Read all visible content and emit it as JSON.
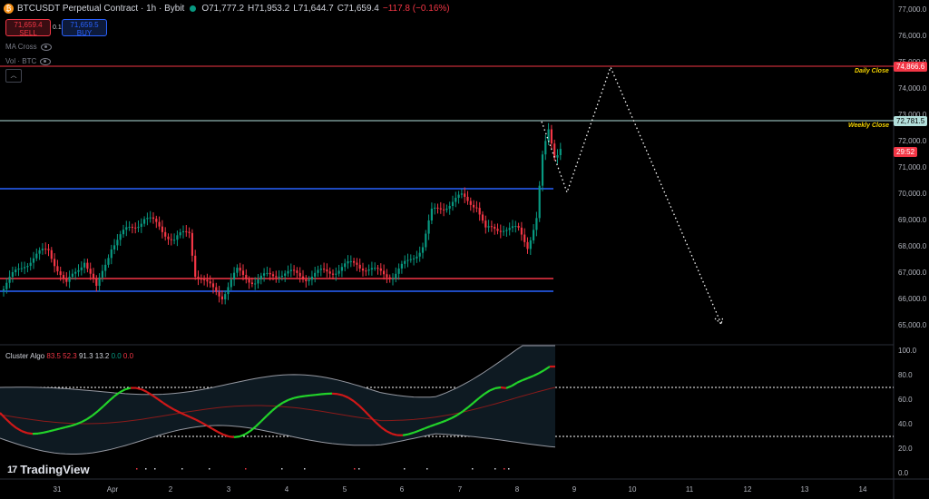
{
  "header": {
    "symbol_icon": "bitcoin-icon",
    "title": "BTCUSDT Perpetual Contract · 1h · Bybit",
    "ohlc_o": "O71,777.2",
    "ohlc_h": "H71,953.2",
    "ohlc_l": "L71,644.7",
    "ohlc_c": "C71,659.4",
    "ohlc_change": "−117.8 (−0.16%)"
  },
  "trade": {
    "sell_price": "71,659.4",
    "sell_label": "SELL",
    "spread": "0.1",
    "buy_price": "71,659.5",
    "buy_label": "BUY"
  },
  "indicators": [
    {
      "label": "MA Cross",
      "icon": "eye-icon"
    },
    {
      "label": "Vol · BTC",
      "icon": "eye-icon"
    }
  ],
  "price_axis": [
    "77,000.0",
    "76,000.0",
    "75,000.0",
    "74,000.0",
    "73,000.0",
    "72,000.0",
    "71,000.0",
    "70,000.0",
    "69,000.0",
    "68,000.0",
    "67,000.0",
    "66,000.0",
    "65,000.0"
  ],
  "price_tags": {
    "daily": "74,866.6",
    "weekly": "72,781.5",
    "countdown": "29:52"
  },
  "level_labels": {
    "daily": "Daily Close",
    "weekly": "Weekly Close"
  },
  "oscillator": {
    "name": "Cluster Algo",
    "values": [
      {
        "text": "83.5",
        "color": "#f23645"
      },
      {
        "text": "52.3",
        "color": "#f23645"
      },
      {
        "text": "91.3",
        "color": "#d1d4dc"
      },
      {
        "text": "13.2",
        "color": "#d1d4dc"
      },
      {
        "text": "0.0",
        "color": "#089981"
      },
      {
        "text": "0.0",
        "color": "#f23645"
      }
    ],
    "axis": [
      "100.0",
      "80.0",
      "60.0",
      "40.0",
      "20.0",
      "0.0"
    ]
  },
  "time_axis": [
    "31",
    "Apr",
    "2",
    "3",
    "4",
    "5",
    "6",
    "7",
    "8",
    "9",
    "10",
    "11",
    "12",
    "13",
    "14"
  ],
  "logo": {
    "mark": "17",
    "text": "TradingView"
  },
  "colors": {
    "up": "#089981",
    "down": "#f23645",
    "daily_line": "#f23645",
    "weekly_line": "#b2dfdb",
    "blue_line": "#2962ff",
    "label_yellow": "#f5d300"
  }
}
